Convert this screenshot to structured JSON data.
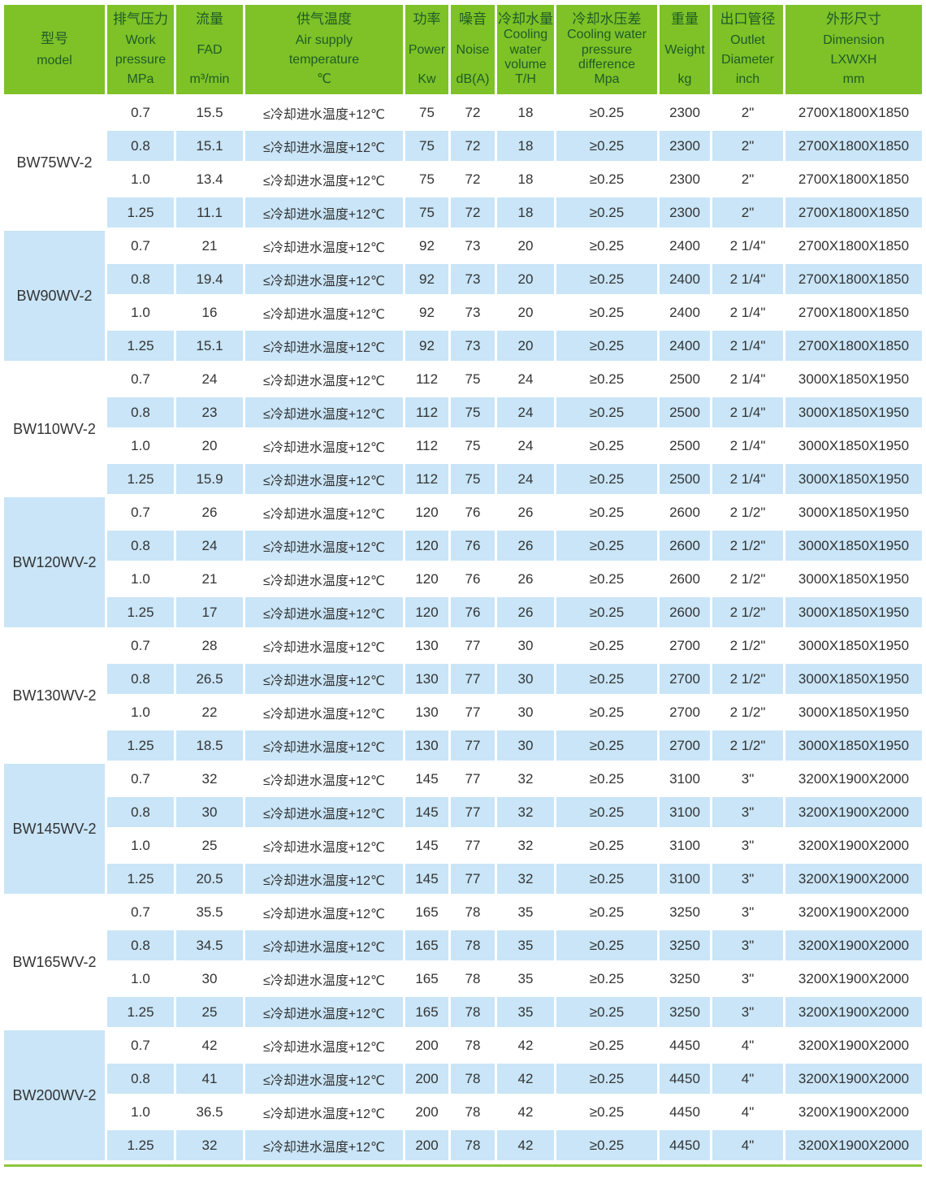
{
  "colors": {
    "header_green": "#7EC228",
    "header_text_green": "#1F5C24",
    "row_blue": "#C9E5F7",
    "body_text": "#333333",
    "bottom_line_green": "#8DC63F"
  },
  "table": {
    "columns": [
      {
        "key": "model",
        "lines": [
          "型号",
          "model"
        ]
      },
      {
        "key": "work-pressure",
        "lines": [
          "排气压力",
          "Work",
          "pressure",
          "MPa"
        ]
      },
      {
        "key": "fad",
        "lines": [
          "流量",
          "FAD",
          "m³/min"
        ]
      },
      {
        "key": "air-supply-temperature",
        "lines": [
          "供气温度",
          "Air supply",
          "temperature",
          "℃"
        ]
      },
      {
        "key": "power",
        "lines": [
          "功率",
          "Power",
          "Kw"
        ]
      },
      {
        "key": "noise",
        "lines": [
          "噪音",
          "Noise",
          "dB(A)"
        ]
      },
      {
        "key": "cooling-water-volume",
        "lines": [
          "冷却水量",
          "Cooling",
          "water",
          "volume",
          "T/H"
        ]
      },
      {
        "key": "cooling-water-pressure-difference",
        "lines": [
          "冷却水压差",
          "Cooling water",
          "pressure",
          "difference",
          "Mpa"
        ]
      },
      {
        "key": "weight",
        "lines": [
          "重量",
          "Weight",
          "kg"
        ]
      },
      {
        "key": "outlet-diameter",
        "lines": [
          "出口管径",
          "Outlet",
          "Diameter",
          "inch"
        ]
      },
      {
        "key": "dimension",
        "lines": [
          "外形尺寸",
          "Dimension",
          "LXWXH",
          "mm"
        ]
      }
    ],
    "blocks": [
      {
        "model": "BW75WV-2",
        "rows": [
          [
            "0.7",
            "15.5",
            "≤冷却进水温度+12℃",
            "75",
            "72",
            "18",
            "≥0.25",
            "2300",
            "2\"",
            "2700X1800X1850"
          ],
          [
            "0.8",
            "15.1",
            "≤冷却进水温度+12℃",
            "75",
            "72",
            "18",
            "≥0.25",
            "2300",
            "2\"",
            "2700X1800X1850"
          ],
          [
            "1.0",
            "13.4",
            "≤冷却进水温度+12℃",
            "75",
            "72",
            "18",
            "≥0.25",
            "2300",
            "2\"",
            "2700X1800X1850"
          ],
          [
            "1.25",
            "11.1",
            "≤冷却进水温度+12℃",
            "75",
            "72",
            "18",
            "≥0.25",
            "2300",
            "2\"",
            "2700X1800X1850"
          ]
        ]
      },
      {
        "model": "BW90WV-2",
        "rows": [
          [
            "0.7",
            "21",
            "≤冷却进水温度+12℃",
            "92",
            "73",
            "20",
            "≥0.25",
            "2400",
            "2 1/4\"",
            "2700X1800X1850"
          ],
          [
            "0.8",
            "19.4",
            "≤冷却进水温度+12℃",
            "92",
            "73",
            "20",
            "≥0.25",
            "2400",
            "2 1/4\"",
            "2700X1800X1850"
          ],
          [
            "1.0",
            "16",
            "≤冷却进水温度+12℃",
            "92",
            "73",
            "20",
            "≥0.25",
            "2400",
            "2 1/4\"",
            "2700X1800X1850"
          ],
          [
            "1.25",
            "15.1",
            "≤冷却进水温度+12℃",
            "92",
            "73",
            "20",
            "≥0.25",
            "2400",
            "2 1/4\"",
            "2700X1800X1850"
          ]
        ]
      },
      {
        "model": "BW110WV-2",
        "rows": [
          [
            "0.7",
            "24",
            "≤冷却进水温度+12℃",
            "112",
            "75",
            "24",
            "≥0.25",
            "2500",
            "2 1/4\"",
            "3000X1850X1950"
          ],
          [
            "0.8",
            "23",
            "≤冷却进水温度+12℃",
            "112",
            "75",
            "24",
            "≥0.25",
            "2500",
            "2 1/4\"",
            "3000X1850X1950"
          ],
          [
            "1.0",
            "20",
            "≤冷却进水温度+12℃",
            "112",
            "75",
            "24",
            "≥0.25",
            "2500",
            "2 1/4\"",
            "3000X1850X1950"
          ],
          [
            "1.25",
            "15.9",
            "≤冷却进水温度+12℃",
            "112",
            "75",
            "24",
            "≥0.25",
            "2500",
            "2 1/4\"",
            "3000X1850X1950"
          ]
        ]
      },
      {
        "model": "BW120WV-2",
        "rows": [
          [
            "0.7",
            "26",
            "≤冷却进水温度+12℃",
            "120",
            "76",
            "26",
            "≥0.25",
            "2600",
            "2 1/2\"",
            "3000X1850X1950"
          ],
          [
            "0.8",
            "24",
            "≤冷却进水温度+12℃",
            "120",
            "76",
            "26",
            "≥0.25",
            "2600",
            "2 1/2\"",
            "3000X1850X1950"
          ],
          [
            "1.0",
            "21",
            "≤冷却进水温度+12℃",
            "120",
            "76",
            "26",
            "≥0.25",
            "2600",
            "2 1/2\"",
            "3000X1850X1950"
          ],
          [
            "1.25",
            "17",
            "≤冷却进水温度+12℃",
            "120",
            "76",
            "26",
            "≥0.25",
            "2600",
            "2 1/2\"",
            "3000X1850X1950"
          ]
        ]
      },
      {
        "model": "BW130WV-2",
        "rows": [
          [
            "0.7",
            "28",
            "≤冷却进水温度+12℃",
            "130",
            "77",
            "30",
            "≥0.25",
            "2700",
            "2 1/2\"",
            "3000X1850X1950"
          ],
          [
            "0.8",
            "26.5",
            "≤冷却进水温度+12℃",
            "130",
            "77",
            "30",
            "≥0.25",
            "2700",
            "2 1/2\"",
            "3000X1850X1950"
          ],
          [
            "1.0",
            "22",
            "≤冷却进水温度+12℃",
            "130",
            "77",
            "30",
            "≥0.25",
            "2700",
            "2 1/2\"",
            "3000X1850X1950"
          ],
          [
            "1.25",
            "18.5",
            "≤冷却进水温度+12℃",
            "130",
            "77",
            "30",
            "≥0.25",
            "2700",
            "2 1/2\"",
            "3000X1850X1950"
          ]
        ]
      },
      {
        "model": "BW145WV-2",
        "rows": [
          [
            "0.7",
            "32",
            "≤冷却进水温度+12℃",
            "145",
            "77",
            "32",
            "≥0.25",
            "3100",
            "3\"",
            "3200X1900X2000"
          ],
          [
            "0.8",
            "30",
            "≤冷却进水温度+12℃",
            "145",
            "77",
            "32",
            "≥0.25",
            "3100",
            "3\"",
            "3200X1900X2000"
          ],
          [
            "1.0",
            "25",
            "≤冷却进水温度+12℃",
            "145",
            "77",
            "32",
            "≥0.25",
            "3100",
            "3\"",
            "3200X1900X2000"
          ],
          [
            "1.25",
            "20.5",
            "≤冷却进水温度+12℃",
            "145",
            "77",
            "32",
            "≥0.25",
            "3100",
            "3\"",
            "3200X1900X2000"
          ]
        ]
      },
      {
        "model": "BW165WV-2",
        "rows": [
          [
            "0.7",
            "35.5",
            "≤冷却进水温度+12℃",
            "165",
            "78",
            "35",
            "≥0.25",
            "3250",
            "3\"",
            "3200X1900X2000"
          ],
          [
            "0.8",
            "34.5",
            "≤冷却进水温度+12℃",
            "165",
            "78",
            "35",
            "≥0.25",
            "3250",
            "3\"",
            "3200X1900X2000"
          ],
          [
            "1.0",
            "30",
            "≤冷却进水温度+12℃",
            "165",
            "78",
            "35",
            "≥0.25",
            "3250",
            "3\"",
            "3200X1900X2000"
          ],
          [
            "1.25",
            "25",
            "≤冷却进水温度+12℃",
            "165",
            "78",
            "35",
            "≥0.25",
            "3250",
            "3\"",
            "3200X1900X2000"
          ]
        ]
      },
      {
        "model": "BW200WV-2",
        "rows": [
          [
            "0.7",
            "42",
            "≤冷却进水温度+12℃",
            "200",
            "78",
            "42",
            "≥0.25",
            "4450",
            "4\"",
            "3200X1900X2000"
          ],
          [
            "0.8",
            "41",
            "≤冷却进水温度+12℃",
            "200",
            "78",
            "42",
            "≥0.25",
            "4450",
            "4\"",
            "3200X1900X2000"
          ],
          [
            "1.0",
            "36.5",
            "≤冷却进水温度+12℃",
            "200",
            "78",
            "42",
            "≥0.25",
            "4450",
            "4\"",
            "3200X1900X2000"
          ],
          [
            "1.25",
            "32",
            "≤冷却进水温度+12℃",
            "200",
            "78",
            "42",
            "≥0.25",
            "4450",
            "4\"",
            "3200X1900X2000"
          ]
        ]
      }
    ]
  }
}
